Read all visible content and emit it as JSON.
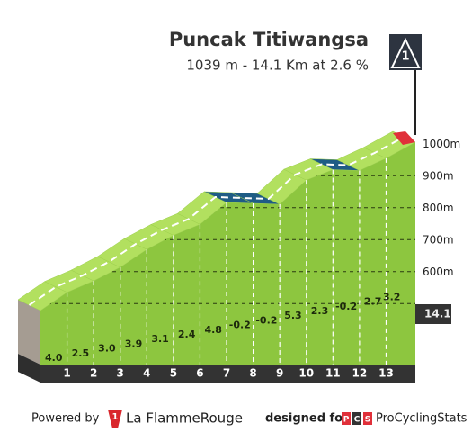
{
  "marker": "1",
  "chart_data": {
    "type": "profile",
    "title": "Puncak Titiwangsa",
    "subtitle": "1039 m - 14.1 Km at 2.6 %",
    "km_labels": [
      "1",
      "2",
      "3",
      "4",
      "5",
      "6",
      "7",
      "8",
      "9",
      "10",
      "11",
      "12",
      "13"
    ],
    "distance": 14.1,
    "values": [
      4.0,
      2.5,
      3.0,
      3.9,
      3.1,
      2.4,
      4.8,
      -0.2,
      -0.2,
      5.3,
      2.3,
      -0.2,
      2.7,
      3.2
    ],
    "value_labels": [
      "4.0",
      "2.5",
      "3.0",
      "3.9",
      "3.1",
      "2.4",
      "4.8",
      "-0.2",
      "-0.2",
      "5.3",
      "2.3",
      "-0.2",
      "2.7",
      "3.2"
    ],
    "color": "#8dc63f",
    "top_color": "#b2e05f",
    "descent_color": "#1f5c85",
    "ylim": [
      550,
      1050
    ],
    "yticks": [
      {
        "value": 600,
        "label": "600m"
      },
      {
        "value": 700,
        "label": "700m"
      },
      {
        "value": 800,
        "label": "800m"
      },
      {
        "value": 900,
        "label": "900m"
      },
      {
        "value": 1000,
        "label": "1000m"
      }
    ]
  },
  "footer": {
    "powered": "Powered by",
    "brand_icon": "1",
    "brand": "La FlammeRouge",
    "designed": "designed for",
    "pcs_letters": [
      "P",
      "C",
      "S"
    ],
    "site": "ProCyclingStats"
  }
}
